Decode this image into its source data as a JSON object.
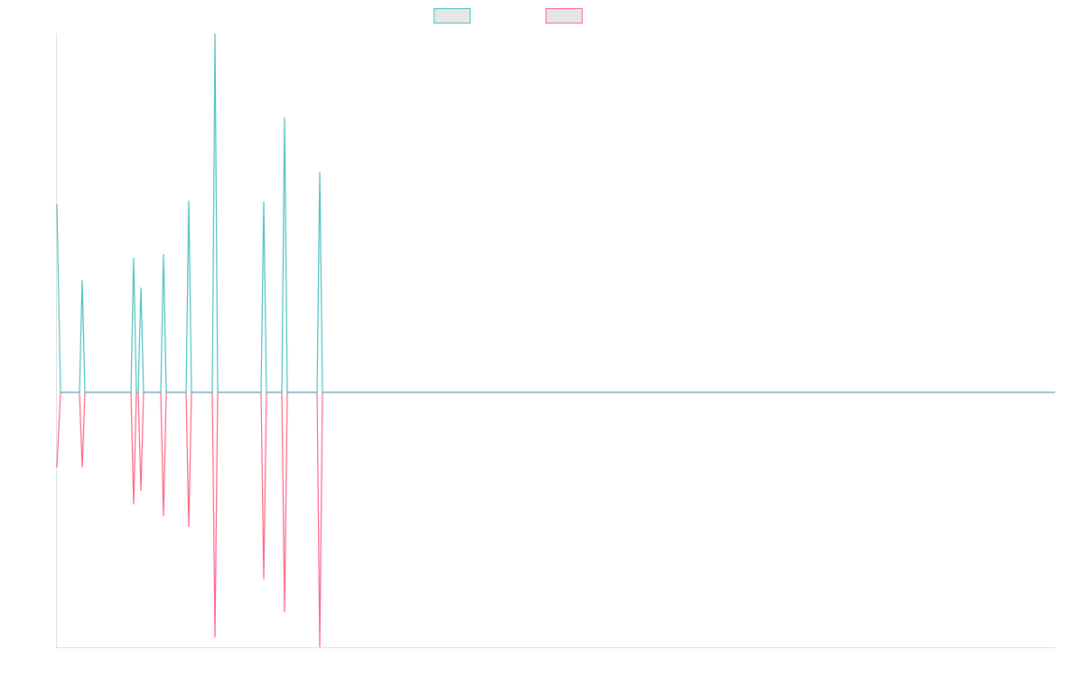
{
  "chart_data": {
    "type": "line",
    "x": [
      0,
      4,
      25,
      28,
      31,
      82,
      85,
      88,
      90,
      93,
      96,
      115,
      118,
      121,
      143,
      146,
      149,
      172,
      175,
      178,
      226,
      229,
      232,
      249,
      252,
      255,
      288,
      291,
      294,
      1105
    ],
    "xlim": [
      0,
      1105
    ],
    "ylim": [
      -282,
      397
    ],
    "legend": "top",
    "series": [
      {
        "color": "#ff6384",
        "values": [
          -83,
          0,
          0,
          -83,
          0,
          0,
          -124,
          0,
          0,
          -109,
          0,
          0,
          -137,
          0,
          0,
          -149,
          0,
          0,
          -271,
          0,
          0,
          -207,
          0,
          0,
          -243,
          0,
          0,
          -282,
          0,
          0
        ]
      },
      {
        "color": "#4bc0c0",
        "values": [
          208,
          0,
          0,
          124,
          0,
          0,
          149,
          0,
          0,
          116,
          0,
          0,
          153,
          0,
          0,
          212,
          0,
          0,
          397,
          0,
          0,
          211,
          0,
          0,
          304,
          0,
          0,
          244,
          0,
          0
        ]
      }
    ]
  }
}
